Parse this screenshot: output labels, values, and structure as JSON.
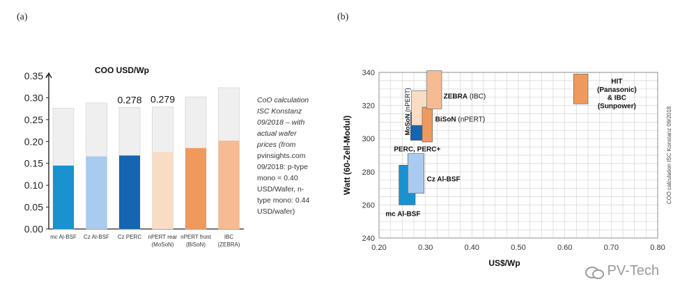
{
  "panel_labels": [
    "(a)",
    "(b)"
  ],
  "note_a": {
    "line1": "CoO calculation",
    "line2": "ISC Konstanz",
    "line3": "09/2018 – with",
    "line4": "actual wafer",
    "line5": "prices (from",
    "line6": "pvinsights.com",
    "line7": "09/2018: p-type",
    "line8": "mono = 0.40",
    "line9": "USD/Wafer, n-",
    "line10": "type mono: 0.44",
    "line11": "USD/wafer)"
  },
  "watermark": "PV-Tech",
  "colors": {
    "bar_top": "#efefef",
    "mc_al_bsf": "#1a92cf",
    "cz_al_bsf": "#a9cbef",
    "cz_perc": "#1565b0",
    "npert_rear": "#f8dcc4",
    "npert_front": "#ef9a5c",
    "ibc": "#f6bb92"
  },
  "chart_data": [
    {
      "type": "bar",
      "title": "COO USD/Wp",
      "categories": [
        "mc Al-BSF",
        "Cz Al-BSF",
        "Cz PERC",
        "nPERT rear",
        "nPERT front",
        "IBC"
      ],
      "category_sublabels": [
        "",
        "",
        "",
        "(MoSoN)",
        "(BiSoN)",
        "(ZEBRA)"
      ],
      "total_values": [
        0.276,
        0.288,
        0.278,
        0.279,
        0.302,
        0.323
      ],
      "lower_values": [
        0.145,
        0.166,
        0.168,
        0.176,
        0.185,
        0.202
      ],
      "data_labels": [
        "",
        "",
        "0.278",
        "0.279",
        "",
        ""
      ],
      "ylim": [
        0,
        0.35
      ],
      "yticks": [
        "0.00",
        "0.05",
        "0.10",
        "0.15",
        "0.20",
        "0.25",
        "0.30",
        "0.35"
      ],
      "xlabel": "",
      "ylabel": ""
    },
    {
      "type": "scatter",
      "xlabel": "US$/Wp",
      "ylabel": "Watt (60-Zell-Modul)",
      "xlim": [
        0.2,
        0.8
      ],
      "ylim": [
        240,
        340
      ],
      "xticks": [
        "0.20",
        "0.30",
        "0.40",
        "0.50",
        "0.60",
        "0.70",
        "0.80"
      ],
      "yticks": [
        "240",
        "260",
        "280",
        "300",
        "320",
        "340"
      ],
      "side_note": "COO calculation ISC Konstanz 09/2018",
      "regions": [
        {
          "name": "mc Al-BSF",
          "x": [
            0.243,
            0.278
          ],
          "y": [
            260,
            284
          ],
          "color": "#1a92cf"
        },
        {
          "name": "Cz Al-BSF",
          "x": [
            0.262,
            0.297
          ],
          "y": [
            267,
            291
          ],
          "color": "#a9cbef"
        },
        {
          "name": "PERC, PERC+",
          "x": [
            0.268,
            0.303
          ],
          "y": [
            299,
            316
          ],
          "color": "#1565b0"
        },
        {
          "name": "MoSoN (nPERT)",
          "x": [
            0.27,
            0.305
          ],
          "y": [
            308,
            329
          ],
          "color": "#f8dcc4"
        },
        {
          "name": "BiSoN (nPERT)",
          "x": [
            0.293,
            0.315
          ],
          "y": [
            298,
            319
          ],
          "color": "#ef9a5c"
        },
        {
          "name": "ZEBRA (IBC)",
          "x": [
            0.303,
            0.335
          ],
          "y": [
            318,
            341
          ],
          "color": "#f6bb92"
        },
        {
          "name": "HIT (Panasonic) & IBC (Sunpower)",
          "x": [
            0.619,
            0.65
          ],
          "y": [
            321,
            339
          ],
          "color": "#ef9a5c"
        }
      ],
      "annotations": [
        {
          "text": "mc Al-BSF",
          "bold": true
        },
        {
          "text": "Cz Al-BSF",
          "bold": true
        },
        {
          "text": "PERC, PERC+",
          "bold": true
        },
        {
          "text": "MoSoN",
          "bold": true,
          "suffix": "(nPERT)"
        },
        {
          "text": "BiSoN",
          "bold": true,
          "suffix": "(nPERT)"
        },
        {
          "text": "ZEBRA",
          "bold": true,
          "suffix": "(IBC)"
        },
        {
          "text": "HIT",
          "bold": true
        },
        {
          "text": "(Panasonic)",
          "bold": true
        },
        {
          "text": "& IBC",
          "bold": true
        },
        {
          "text": "(Sunpower)",
          "bold": true
        }
      ]
    }
  ]
}
